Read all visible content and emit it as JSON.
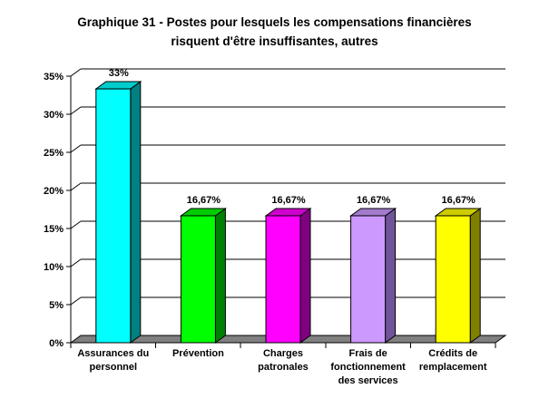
{
  "header": {
    "title_lines": [
      "Graphique 31 - Postes pour lesquels les compensations financières",
      "risquent d'être insuffisantes, autres"
    ]
  },
  "chart_data": {
    "type": "bar",
    "style": "3d-column",
    "title": "Graphique 31 - Postes pour lesquels les compensations financières risquent d'être insuffisantes, autres",
    "categories": [
      "Assurances du personnel",
      "Prévention",
      "Charges patronales",
      "Frais de fonctionnement des services",
      "Crédits de remplacement"
    ],
    "category_label_lines": [
      [
        "Assurances du",
        "personnel"
      ],
      [
        "Prévention"
      ],
      [
        "Charges",
        "patronales"
      ],
      [
        "Frais de",
        "fonctionnement",
        "des services"
      ],
      [
        "Crédits de",
        "remplacement"
      ]
    ],
    "values": [
      33.33,
      16.67,
      16.67,
      16.67,
      16.67
    ],
    "data_labels": [
      "33%",
      "16,67%",
      "16,67%",
      "16,67%",
      "16,67%"
    ],
    "y_tick_labels": [
      "0%",
      "5%",
      "10%",
      "15%",
      "20%",
      "25%",
      "30%",
      "35%"
    ],
    "ylim": [
      0,
      35
    ],
    "y_step": 5,
    "grid": true,
    "legend": false,
    "bar_colors": [
      {
        "front": "#00FFFF",
        "top": "#00CCCC",
        "side": "#008080"
      },
      {
        "front": "#00FF00",
        "top": "#00CC00",
        "side": "#008000"
      },
      {
        "front": "#FF00FF",
        "top": "#CC00CC",
        "side": "#800080"
      },
      {
        "front": "#CC99FF",
        "top": "#A37ACC",
        "side": "#70549A"
      },
      {
        "front": "#FFFF00",
        "top": "#CCCC00",
        "side": "#808000"
      }
    ],
    "floor_color": "#808080",
    "background": "#FFFFFF",
    "text_color": "#000000",
    "axis_color": "#000000"
  }
}
